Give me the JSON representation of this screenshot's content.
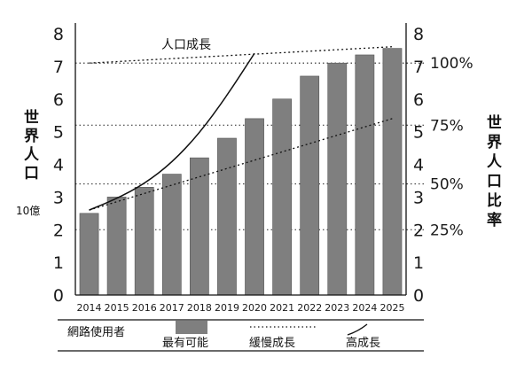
{
  "chart_data": {
    "type": "bar",
    "categories": [
      "2014",
      "2015",
      "2016",
      "2017",
      "2018",
      "2019",
      "2020",
      "2021",
      "2022",
      "2023",
      "2024",
      "2025"
    ],
    "series": [
      {
        "name": "最有可能",
        "values": [
          2.5,
          3.0,
          3.3,
          3.7,
          4.2,
          4.8,
          5.4,
          6.0,
          6.7,
          7.1,
          7.35,
          7.55
        ]
      }
    ],
    "lines": [
      {
        "name": "緩慢成長",
        "style": "dotted",
        "x": [
          "2014",
          "2025"
        ],
        "y": [
          2.6,
          5.4
        ]
      },
      {
        "name": "高成長",
        "style": "solid",
        "x": [
          "2014",
          "2015",
          "2016",
          "2017",
          "2018",
          "2019",
          "2020"
        ],
        "y": [
          2.6,
          2.95,
          3.4,
          4.05,
          4.95,
          6.1,
          7.4
        ]
      },
      {
        "name": "人口成長",
        "style": "dotted",
        "x": [
          "2014",
          "2025"
        ],
        "y": [
          7.1,
          7.6
        ]
      }
    ],
    "reference_lines": [
      {
        "y": 2.0,
        "right_label": "25%"
      },
      {
        "y": 3.4,
        "right_label": "50%"
      },
      {
        "y": 5.2,
        "right_label": "75%"
      },
      {
        "y": 7.1,
        "right_label": "100%"
      }
    ],
    "left_axis": {
      "label": "世界人口",
      "unit": "10億",
      "ticks": [
        "0",
        "1",
        "2",
        "3",
        "4",
        "5",
        "6",
        "7",
        "8"
      ],
      "ylim": [
        0,
        8
      ]
    },
    "right_axis": {
      "label": "世界人口比率",
      "ticks": [
        "0",
        "1",
        "2",
        "3",
        "4",
        "5",
        "6",
        "7",
        "8"
      ],
      "ylim": [
        0,
        8
      ]
    },
    "annotation": "人口成長",
    "legend": {
      "title": "網路使用者",
      "items": [
        "最有可能",
        "緩慢成長",
        "高成長"
      ]
    },
    "grid": false,
    "colors": {
      "bar": "#7f7f7f",
      "bar_edge": "#555555",
      "line": "#111111"
    }
  }
}
